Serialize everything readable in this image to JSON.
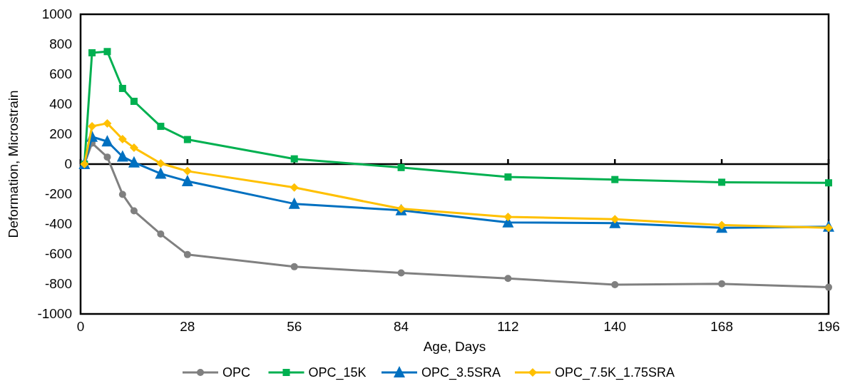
{
  "chart_data": {
    "type": "line",
    "xlabel": "Age, Days",
    "ylabel": "Deformation, Microstrain",
    "xlim": [
      0,
      196
    ],
    "xticks": [
      0,
      28,
      56,
      84,
      112,
      140,
      168,
      196
    ],
    "ylim": [
      -1000,
      1000
    ],
    "yticks": [
      -1000,
      -800,
      -600,
      -400,
      -200,
      0,
      200,
      400,
      600,
      800,
      1000
    ],
    "legend": "bottom",
    "line_style": "solid",
    "x": [
      1,
      3,
      7,
      11,
      14,
      21,
      28,
      56,
      84,
      112,
      140,
      168,
      196
    ],
    "series": [
      {
        "name": "OPC",
        "color": "#808080",
        "marker": "circle",
        "values": [
          0,
          140,
          47,
          -202,
          -312,
          -467,
          -604,
          -685,
          -726,
          -763,
          -805,
          -799,
          -822
        ]
      },
      {
        "name": "OPC_15K",
        "color": "#00b050",
        "marker": "square",
        "values": [
          0,
          743,
          751,
          505,
          419,
          252,
          164,
          35,
          -23,
          -86,
          -103,
          -121,
          -125
        ]
      },
      {
        "name": "OPC_3.5SRA",
        "color": "#0070c0",
        "marker": "triangle",
        "values": [
          0,
          182,
          151,
          50,
          11,
          -64,
          -114,
          -265,
          -308,
          -389,
          -394,
          -425,
          -418
        ]
      },
      {
        "name": "OPC_7.5K_1.75SRA",
        "color": "#ffc000",
        "marker": "diamond",
        "values": [
          0,
          252,
          272,
          167,
          109,
          5,
          -47,
          -156,
          -298,
          -352,
          -368,
          -407,
          -425
        ]
      }
    ]
  }
}
